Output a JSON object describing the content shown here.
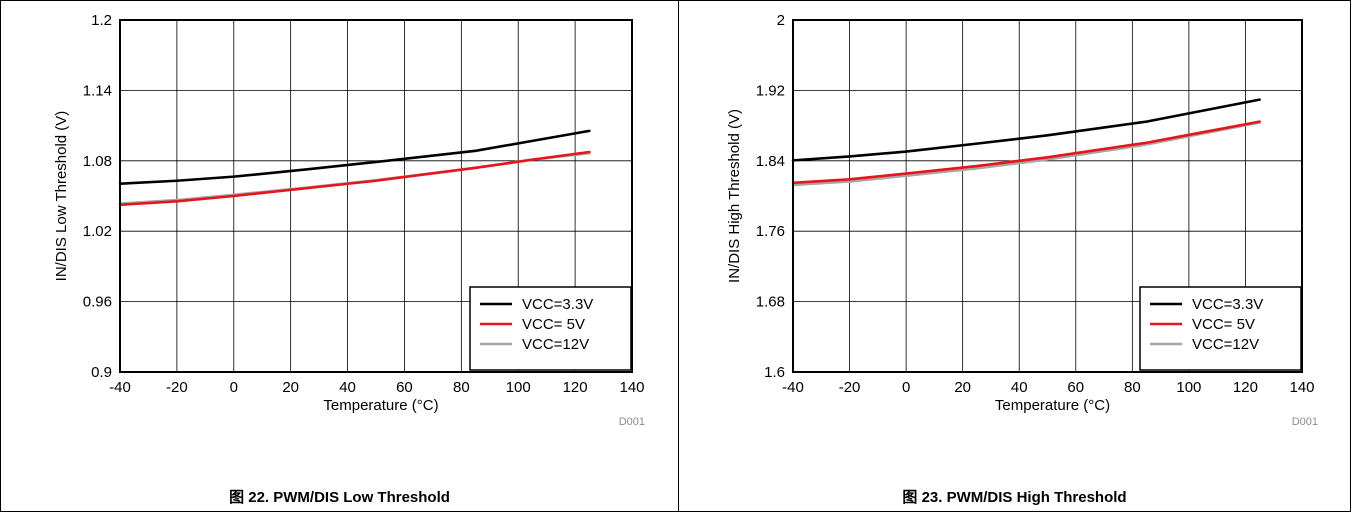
{
  "figures": [
    {
      "caption": "图 22. PWM/DIS Low Threshold",
      "footnote": "D001",
      "chart_data": {
        "type": "line",
        "title": "",
        "xlabel": "Temperature (°C)",
        "ylabel": "IN/DIS Low Threshold (V)",
        "xlim": [
          -40,
          140
        ],
        "ylim": [
          0.9,
          1.2
        ],
        "xticks": [
          "-40",
          "-20",
          "0",
          "20",
          "40",
          "60",
          "80",
          "100",
          "120",
          "140"
        ],
        "yticks": [
          "0.9",
          "0.96",
          "1.02",
          "1.08",
          "1.14",
          "1.2"
        ],
        "grid": true,
        "legend_position": "bottom-right",
        "x": [
          -40,
          -20,
          0,
          25,
          50,
          85,
          105,
          125
        ],
        "series": [
          {
            "name": "VCC=3.3V",
            "color": "#000000",
            "values": [
              1.0605,
              1.063,
              1.0665,
              1.0725,
              1.079,
              1.0885,
              1.097,
              1.1055
            ]
          },
          {
            "name": "VCC= 5V",
            "color": "#e8141b",
            "values": [
              1.0425,
              1.0455,
              1.05,
              1.0565,
              1.063,
              1.074,
              1.081,
              1.0875
            ]
          },
          {
            "name": "VCC=12V",
            "color": "#a6a6a6",
            "values": [
              1.0435,
              1.0465,
              1.051,
              1.057,
              1.0635,
              1.074,
              1.081,
              1.0865
            ]
          }
        ]
      }
    },
    {
      "caption": "图 23. PWM/DIS High Threshold",
      "footnote": "D001",
      "chart_data": {
        "type": "line",
        "title": "",
        "xlabel": "Temperature (°C)",
        "ylabel": "IN/DIS High Threshold (V)",
        "xlim": [
          -40,
          140
        ],
        "ylim": [
          1.6,
          2.0
        ],
        "xticks": [
          "-40",
          "-20",
          "0",
          "20",
          "40",
          "60",
          "80",
          "100",
          "120",
          "140"
        ],
        "yticks": [
          "1.6",
          "1.68",
          "1.76",
          "1.84",
          "1.92",
          "2"
        ],
        "grid": true,
        "legend_position": "bottom-right",
        "x": [
          -40,
          -20,
          0,
          25,
          50,
          85,
          105,
          125
        ],
        "series": [
          {
            "name": "VCC=3.3V",
            "color": "#000000",
            "values": [
              1.8405,
              1.845,
              1.8505,
              1.8595,
              1.869,
              1.8845,
              1.897,
              1.9095
            ]
          },
          {
            "name": "VCC= 5V",
            "color": "#e8141b",
            "values": [
              1.815,
              1.819,
              1.8255,
              1.834,
              1.844,
              1.8605,
              1.8725,
              1.8845
            ]
          },
          {
            "name": "VCC=12V",
            "color": "#a6a6a6",
            "values": [
              1.8125,
              1.8165,
              1.823,
              1.8315,
              1.8415,
              1.8585,
              1.871,
              1.8835
            ]
          }
        ]
      }
    }
  ]
}
